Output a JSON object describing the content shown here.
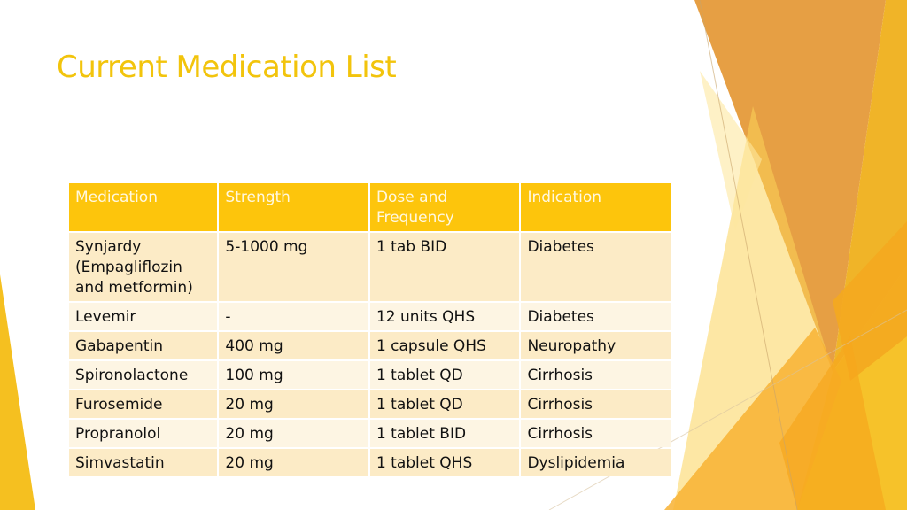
{
  "slide": {
    "title": "Current Medication List"
  },
  "table": {
    "headers": [
      "Medication",
      "Strength",
      "Dose and Frequency",
      "Indication"
    ],
    "rows": [
      [
        "Synjardy (Empagliflozin and metformin)",
        "5-1000 mg",
        "1 tab BID",
        "Diabetes"
      ],
      [
        "Levemir",
        "-",
        "12 units QHS",
        "Diabetes"
      ],
      [
        "Gabapentin",
        "400 mg",
        "1 capsule QHS",
        "Neuropathy"
      ],
      [
        "Spironolactone",
        "100 mg",
        "1 tablet QD",
        "Cirrhosis"
      ],
      [
        "Furosemide",
        "20 mg",
        "1 tablet QD",
        "Cirrhosis"
      ],
      [
        "Propranolol",
        "20 mg",
        "1 tablet BID",
        "Cirrhosis"
      ],
      [
        "Simvastatin",
        "20 mg",
        "1 tablet QHS",
        "Dyslipidemia"
      ]
    ]
  },
  "colors": {
    "accent": "#f2c40c",
    "header_fill": "#fdc50c",
    "row_odd": "#fcebc6",
    "row_even": "#fdf5e3"
  }
}
